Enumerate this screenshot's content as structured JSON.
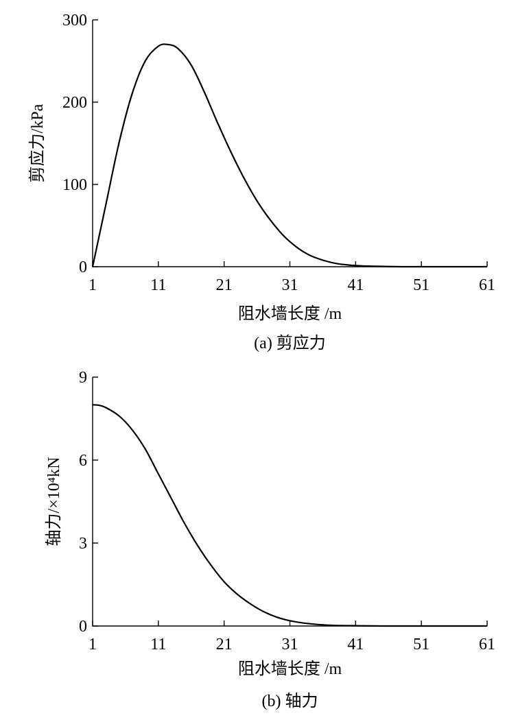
{
  "chart_data": [
    {
      "type": "line",
      "caption": "(a)  剪应力",
      "xlabel": "阻水墙长度 /m",
      "ylabel": "剪应力/kPa",
      "xlim": [
        1,
        61
      ],
      "ylim": [
        0,
        300
      ],
      "xticks": [
        1,
        11,
        21,
        31,
        41,
        51,
        61
      ],
      "yticks": [
        0,
        100,
        200,
        300
      ],
      "grid": false,
      "series": [
        {
          "x": [
            1,
            3,
            5,
            7,
            9,
            11,
            12.5,
            14,
            16,
            18,
            20,
            22,
            24,
            26,
            28,
            30,
            32,
            34,
            36,
            38,
            40,
            42,
            44,
            46,
            48,
            50,
            52,
            54,
            56,
            58,
            61
          ],
          "values": [
            0,
            75,
            150,
            210,
            250,
            268,
            270,
            265,
            245,
            212,
            175,
            140,
            108,
            80,
            57,
            38,
            24,
            14,
            8,
            4,
            2,
            1,
            0.5,
            0.2,
            0,
            0,
            0,
            0,
            0,
            0,
            0
          ]
        }
      ]
    },
    {
      "type": "line",
      "caption": "(b)  轴力",
      "xlabel": "阻水墙长度 /m",
      "ylabel": "轴力/×10⁴kN",
      "xlim": [
        1,
        61
      ],
      "ylim": [
        0,
        9
      ],
      "xticks": [
        1,
        11,
        21,
        31,
        41,
        51,
        61
      ],
      "yticks": [
        0,
        3,
        6,
        9
      ],
      "grid": false,
      "series": [
        {
          "x": [
            1,
            2,
            3,
            5,
            7,
            9,
            11,
            13,
            15,
            17,
            19,
            21,
            23,
            25,
            27,
            29,
            31,
            33,
            35,
            37,
            39,
            41,
            45,
            50,
            55,
            61
          ],
          "values": [
            8.0,
            7.98,
            7.9,
            7.6,
            7.1,
            6.4,
            5.5,
            4.6,
            3.7,
            2.9,
            2.2,
            1.6,
            1.15,
            0.8,
            0.52,
            0.32,
            0.19,
            0.11,
            0.06,
            0.03,
            0.015,
            0.01,
            0,
            0,
            0,
            0
          ]
        }
      ]
    }
  ]
}
